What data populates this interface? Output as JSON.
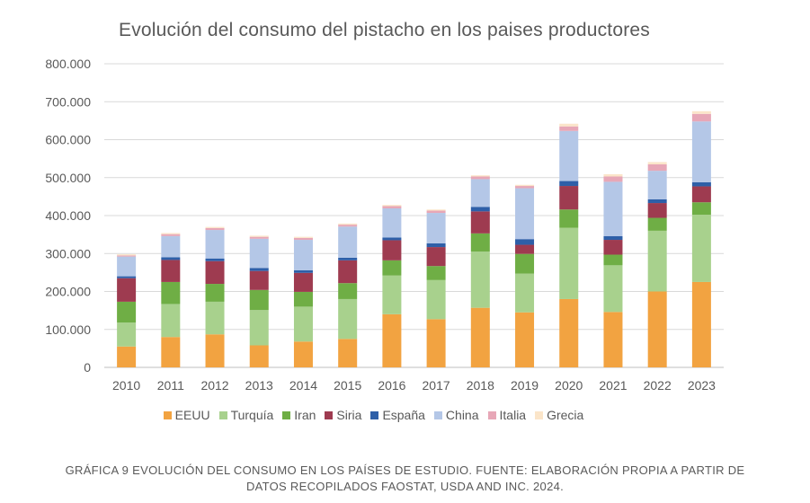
{
  "chart_data": {
    "type": "bar",
    "stacked": true,
    "title": "Evolución del consumo del pistacho en los paises productores",
    "xlabel": "",
    "ylabel": "",
    "ylim": [
      0,
      800000
    ],
    "yticks": [
      "0",
      "100.000",
      "200.000",
      "300.000",
      "400.000",
      "500.000",
      "600.000",
      "700.000",
      "800.000"
    ],
    "grid": true,
    "legend_position": "bottom",
    "categories": [
      "2010",
      "2011",
      "2012",
      "2013",
      "2014",
      "2015",
      "2016",
      "2017",
      "2018",
      "2019",
      "2020",
      "2021",
      "2022",
      "2023"
    ],
    "series": [
      {
        "name": "EEUU",
        "color": "#f2a341",
        "values": [
          55000,
          80000,
          87000,
          58000,
          68000,
          75000,
          140000,
          127000,
          157000,
          145000,
          180000,
          146000,
          200000,
          225000
        ]
      },
      {
        "name": "Turquía",
        "color": "#a8d18d",
        "values": [
          63000,
          87000,
          86000,
          93000,
          92000,
          105000,
          102000,
          103000,
          148000,
          102000,
          188000,
          123000,
          160000,
          177000
        ]
      },
      {
        "name": "Iran",
        "color": "#6fae45",
        "values": [
          55000,
          58000,
          47000,
          53000,
          39000,
          42000,
          40000,
          37000,
          48000,
          52000,
          48000,
          28000,
          34000,
          33000
        ]
      },
      {
        "name": "Siria",
        "color": "#9e3b50",
        "values": [
          62000,
          58000,
          60000,
          50000,
          50000,
          60000,
          53000,
          50000,
          58000,
          24000,
          62000,
          39000,
          39000,
          42000
        ]
      },
      {
        "name": "España",
        "color": "#2e5fa8",
        "values": [
          5000,
          7000,
          7000,
          8000,
          7000,
          7000,
          7000,
          10000,
          12000,
          15000,
          13000,
          10000,
          10000,
          11000
        ]
      },
      {
        "name": "China",
        "color": "#b4c7e7",
        "values": [
          52000,
          56000,
          75000,
          77000,
          80000,
          82000,
          77000,
          80000,
          73000,
          134000,
          132000,
          143000,
          75000,
          160000
        ]
      },
      {
        "name": "Italia",
        "color": "#e7a7b7",
        "values": [
          3000,
          5000,
          5000,
          5000,
          5000,
          5000,
          6000,
          6000,
          7000,
          6000,
          12000,
          14000,
          17000,
          20000
        ]
      },
      {
        "name": "Grecia",
        "color": "#fbe5c9",
        "values": [
          3000,
          3000,
          3000,
          3000,
          3000,
          3000,
          3000,
          3000,
          3000,
          3000,
          7000,
          6000,
          6000,
          7000
        ]
      }
    ]
  },
  "caption": {
    "line1": "GRÁFICA 9 EVOLUCIÓN DEL CONSUMO EN LOS PAÍSES DE ESTUDIO. FUENTE: ELABORACIÓN PROPIA A PARTIR DE",
    "line2": "DATOS RECOPILADOS FAOSTAT, USDA AND INC. 2024."
  }
}
